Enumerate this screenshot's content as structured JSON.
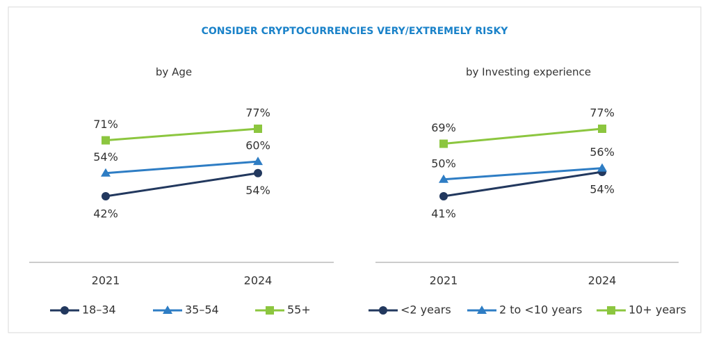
{
  "title": "CONSIDER CRYPTOCURRENCIES VERY/EXTREMELY RISKY",
  "chart_data": [
    {
      "type": "line",
      "subtitle": "by Age",
      "categories": [
        "2021",
        "2024"
      ],
      "series": [
        {
          "name": "18–34",
          "color": "#22385e",
          "marker": "circle",
          "values": [
            42,
            54
          ],
          "value_labels": [
            "42%",
            "54%"
          ]
        },
        {
          "name": "35–54",
          "color": "#2e7dc4",
          "marker": "triangle",
          "values": [
            54,
            60
          ],
          "value_labels": [
            "54%",
            "60%"
          ]
        },
        {
          "name": "55+",
          "color": "#8cc63f",
          "marker": "square",
          "values": [
            71,
            77
          ],
          "value_labels": [
            "71%",
            "77%"
          ]
        }
      ]
    },
    {
      "type": "line",
      "subtitle": "by Investing experience",
      "categories": [
        "2021",
        "2024"
      ],
      "series": [
        {
          "name": "<2 years",
          "color": "#22385e",
          "marker": "circle",
          "values": [
            41,
            54
          ],
          "value_labels": [
            "41%",
            "54%"
          ]
        },
        {
          "name": "2 to <10 years",
          "color": "#2e7dc4",
          "marker": "triangle",
          "values": [
            50,
            56
          ],
          "value_labels": [
            "50%",
            "56%"
          ]
        },
        {
          "name": "10+ years",
          "color": "#8cc63f",
          "marker": "square",
          "values": [
            69,
            77
          ],
          "value_labels": [
            "69%",
            "77%"
          ]
        }
      ]
    }
  ]
}
